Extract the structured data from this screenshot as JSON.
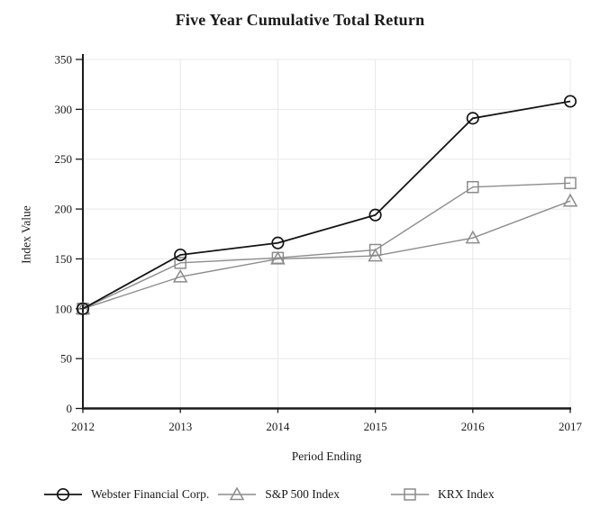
{
  "title": "Five Year Cumulative Total Return",
  "chart_data": {
    "type": "line",
    "title": "Five Year Cumulative Total Return",
    "xlabel": "Period Ending",
    "ylabel": "Index Value",
    "categories": [
      "2012",
      "2013",
      "2014",
      "2015",
      "2016",
      "2017"
    ],
    "series": [
      {
        "name": "Webster Financial Corp.",
        "marker": "circle",
        "color": "#141414",
        "values": [
          100,
          154,
          166,
          194,
          291,
          308
        ]
      },
      {
        "name": "S&P 500 Index",
        "marker": "triangle",
        "color": "#8c8c8c",
        "values": [
          100,
          132,
          150,
          153,
          171,
          208
        ]
      },
      {
        "name": "KRX Index",
        "marker": "square",
        "color": "#8c8c8c",
        "values": [
          100,
          146,
          151,
          159,
          222,
          226
        ]
      }
    ],
    "ylim": [
      0,
      350
    ],
    "ytick_step": 50,
    "grid": true,
    "legend_position": "bottom"
  },
  "colors": {
    "grid": "#e8e8e8",
    "axis": "#1a1a1a",
    "text": "#1a1a1a",
    "background": "#ffffff"
  }
}
